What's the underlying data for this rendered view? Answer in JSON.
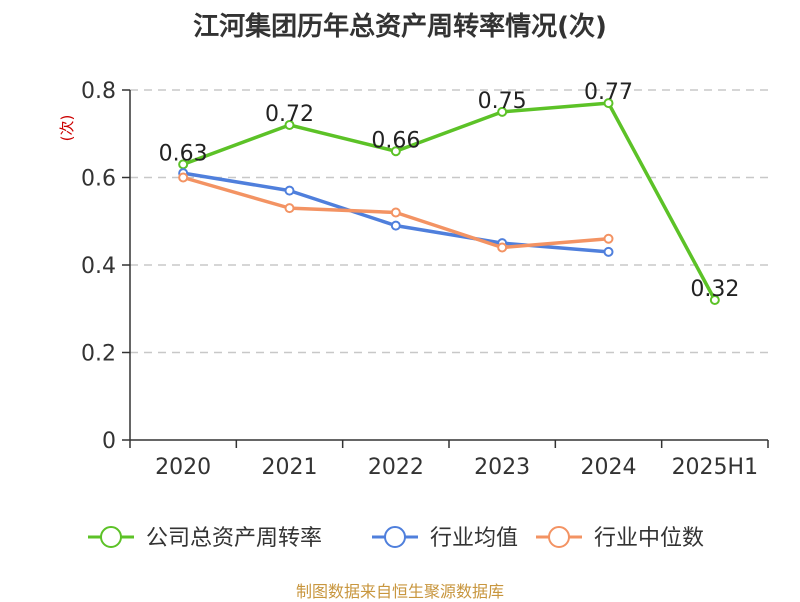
{
  "chart_data": {
    "type": "line",
    "title": "江河集团历年总资产周转率情况(次)",
    "ylabel": "(次)",
    "xlabel": "",
    "categories": [
      "2020",
      "2021",
      "2022",
      "2023",
      "2024",
      "2025H1"
    ],
    "ylim": [
      0,
      0.8
    ],
    "yticks": [
      "0",
      "0.2",
      "0.4",
      "0.6",
      "0.8"
    ],
    "grid": true,
    "legend_position": "bottom",
    "series": [
      {
        "name": "公司总资产周转率",
        "color": "#5cc227",
        "values": [
          0.63,
          0.72,
          0.66,
          0.75,
          0.77,
          0.32
        ],
        "labels": [
          "0.63",
          "0.72",
          "0.66",
          "0.75",
          "0.77",
          "0.32"
        ]
      },
      {
        "name": "行业均值",
        "color": "#4f7fdc",
        "values": [
          0.61,
          0.57,
          0.49,
          0.45,
          0.43,
          null
        ]
      },
      {
        "name": "行业中位数",
        "color": "#f39363",
        "values": [
          0.6,
          0.53,
          0.52,
          0.44,
          0.46,
          null
        ]
      }
    ]
  },
  "source_text": "制图数据来自恒生聚源数据库"
}
